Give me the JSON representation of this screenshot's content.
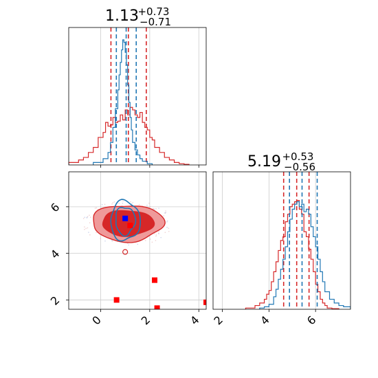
{
  "chart_data": {
    "type": "corner",
    "parameters": [
      {
        "title_value": "1.13",
        "title_plus": "+0.73",
        "title_minus": "−0.71",
        "axis_range": [
          -1.3,
          4.3
        ],
        "ticks": [
          0,
          2,
          4
        ],
        "tick_labels": [
          "0",
          "2",
          "4"
        ]
      },
      {
        "title_value": "5.19",
        "title_plus": "+0.53",
        "title_minus": "−0.56",
        "axis_range": [
          1.6,
          7.5
        ],
        "ticks": [
          2,
          4,
          6
        ],
        "tick_labels": [
          "2",
          "4",
          "6"
        ]
      }
    ],
    "series": [
      {
        "color": "#d62728",
        "hist_x": {
          "bins": [
            -1.3,
            -0.9,
            -0.7,
            -0.5,
            -0.3,
            -0.1,
            0.1,
            0.2,
            0.3,
            0.4,
            0.5,
            0.6,
            0.7,
            0.8,
            0.9,
            1.0,
            1.1,
            1.2,
            1.3,
            1.4,
            1.5,
            1.6,
            1.7,
            1.8,
            1.9,
            2.0,
            2.1,
            2.2,
            2.4,
            2.6,
            2.8,
            3.0,
            3.2,
            3.4,
            3.6
          ],
          "counts": [
            0.02,
            0.04,
            0.06,
            0.1,
            0.14,
            0.22,
            0.26,
            0.34,
            0.31,
            0.32,
            0.38,
            0.34,
            0.35,
            0.4,
            0.36,
            0.44,
            0.4,
            0.46,
            0.44,
            0.4,
            0.38,
            0.42,
            0.34,
            0.3,
            0.28,
            0.22,
            0.2,
            0.14,
            0.1,
            0.06,
            0.04,
            0.02,
            0.01,
            0.005
          ],
          "quantiles": [
            0.42,
            1.13,
            1.86
          ]
        },
        "hist_y": {
          "bins": [
            3.0,
            3.4,
            3.6,
            3.8,
            3.9,
            4.0,
            4.1,
            4.2,
            4.3,
            4.4,
            4.5,
            4.6,
            4.7,
            4.8,
            4.9,
            5.0,
            5.1,
            5.2,
            5.3,
            5.4,
            5.5,
            5.6,
            5.7,
            5.8,
            5.9,
            6.0,
            6.1,
            6.2,
            6.3,
            6.4,
            6.5,
            6.7,
            7.0
          ],
          "counts": [
            0.01,
            0.03,
            0.05,
            0.08,
            0.12,
            0.15,
            0.22,
            0.3,
            0.38,
            0.47,
            0.55,
            0.58,
            0.7,
            0.76,
            0.82,
            0.84,
            0.86,
            0.87,
            0.8,
            0.76,
            0.62,
            0.58,
            0.48,
            0.4,
            0.3,
            0.2,
            0.14,
            0.08,
            0.05,
            0.03,
            0.01,
            0.005
          ],
          "quantiles": [
            4.63,
            5.19,
            5.72
          ]
        },
        "contour_center": [
          1.1,
          5.3
        ],
        "contour_levels": [
          {
            "rx": 1.05,
            "ry": 0.55
          },
          {
            "rx": 1.45,
            "ry": 0.78
          }
        ],
        "scatter_points": [
          [
            0.65,
            2.0
          ],
          [
            2.2,
            2.85
          ],
          [
            2.3,
            1.65
          ],
          [
            4.3,
            1.9
          ],
          [
            1.2,
            5.2
          ]
        ]
      },
      {
        "color": "#1f77b4",
        "hist_x": {
          "bins": [
            -0.3,
            0.1,
            0.3,
            0.4,
            0.5,
            0.6,
            0.7,
            0.75,
            0.8,
            0.85,
            0.9,
            0.95,
            1.0,
            1.05,
            1.1,
            1.15,
            1.2,
            1.25,
            1.3,
            1.4,
            1.5,
            1.6,
            1.7,
            1.9,
            2.1
          ],
          "counts": [
            0.02,
            0.05,
            0.1,
            0.18,
            0.3,
            0.45,
            0.6,
            0.72,
            0.82,
            0.92,
            1.0,
            0.98,
            0.9,
            0.8,
            0.64,
            0.5,
            0.38,
            0.28,
            0.18,
            0.12,
            0.08,
            0.05,
            0.03,
            0.01
          ],
          "quantiles": [
            0.64,
            1.04,
            1.45
          ]
        },
        "hist_y": {
          "bins": [
            3.6,
            3.8,
            4.0,
            4.2,
            4.3,
            4.4,
            4.5,
            4.6,
            4.7,
            4.8,
            4.9,
            5.0,
            5.1,
            5.2,
            5.3,
            5.4,
            5.5,
            5.6,
            5.7,
            5.8,
            5.9,
            6.0,
            6.1,
            6.2,
            6.3,
            6.4,
            6.6,
            6.8,
            7.0,
            7.2,
            7.5
          ],
          "counts": [
            0.01,
            0.02,
            0.04,
            0.1,
            0.16,
            0.24,
            0.32,
            0.4,
            0.5,
            0.62,
            0.72,
            0.8,
            0.84,
            0.86,
            0.82,
            0.84,
            0.78,
            0.8,
            0.76,
            0.66,
            0.58,
            0.5,
            0.4,
            0.3,
            0.22,
            0.14,
            0.08,
            0.05,
            0.03,
            0.02
          ],
          "quantiles": [
            4.88,
            5.42,
            6.07
          ]
        },
        "contour_center": [
          1.0,
          5.4
        ],
        "contour_levels": [
          {
            "rx": 0.4,
            "ry": 0.6
          },
          {
            "rx": 0.6,
            "ry": 0.85
          }
        ],
        "scatter_points": [
          [
            1.0,
            5.5
          ]
        ]
      }
    ],
    "grid": true
  }
}
